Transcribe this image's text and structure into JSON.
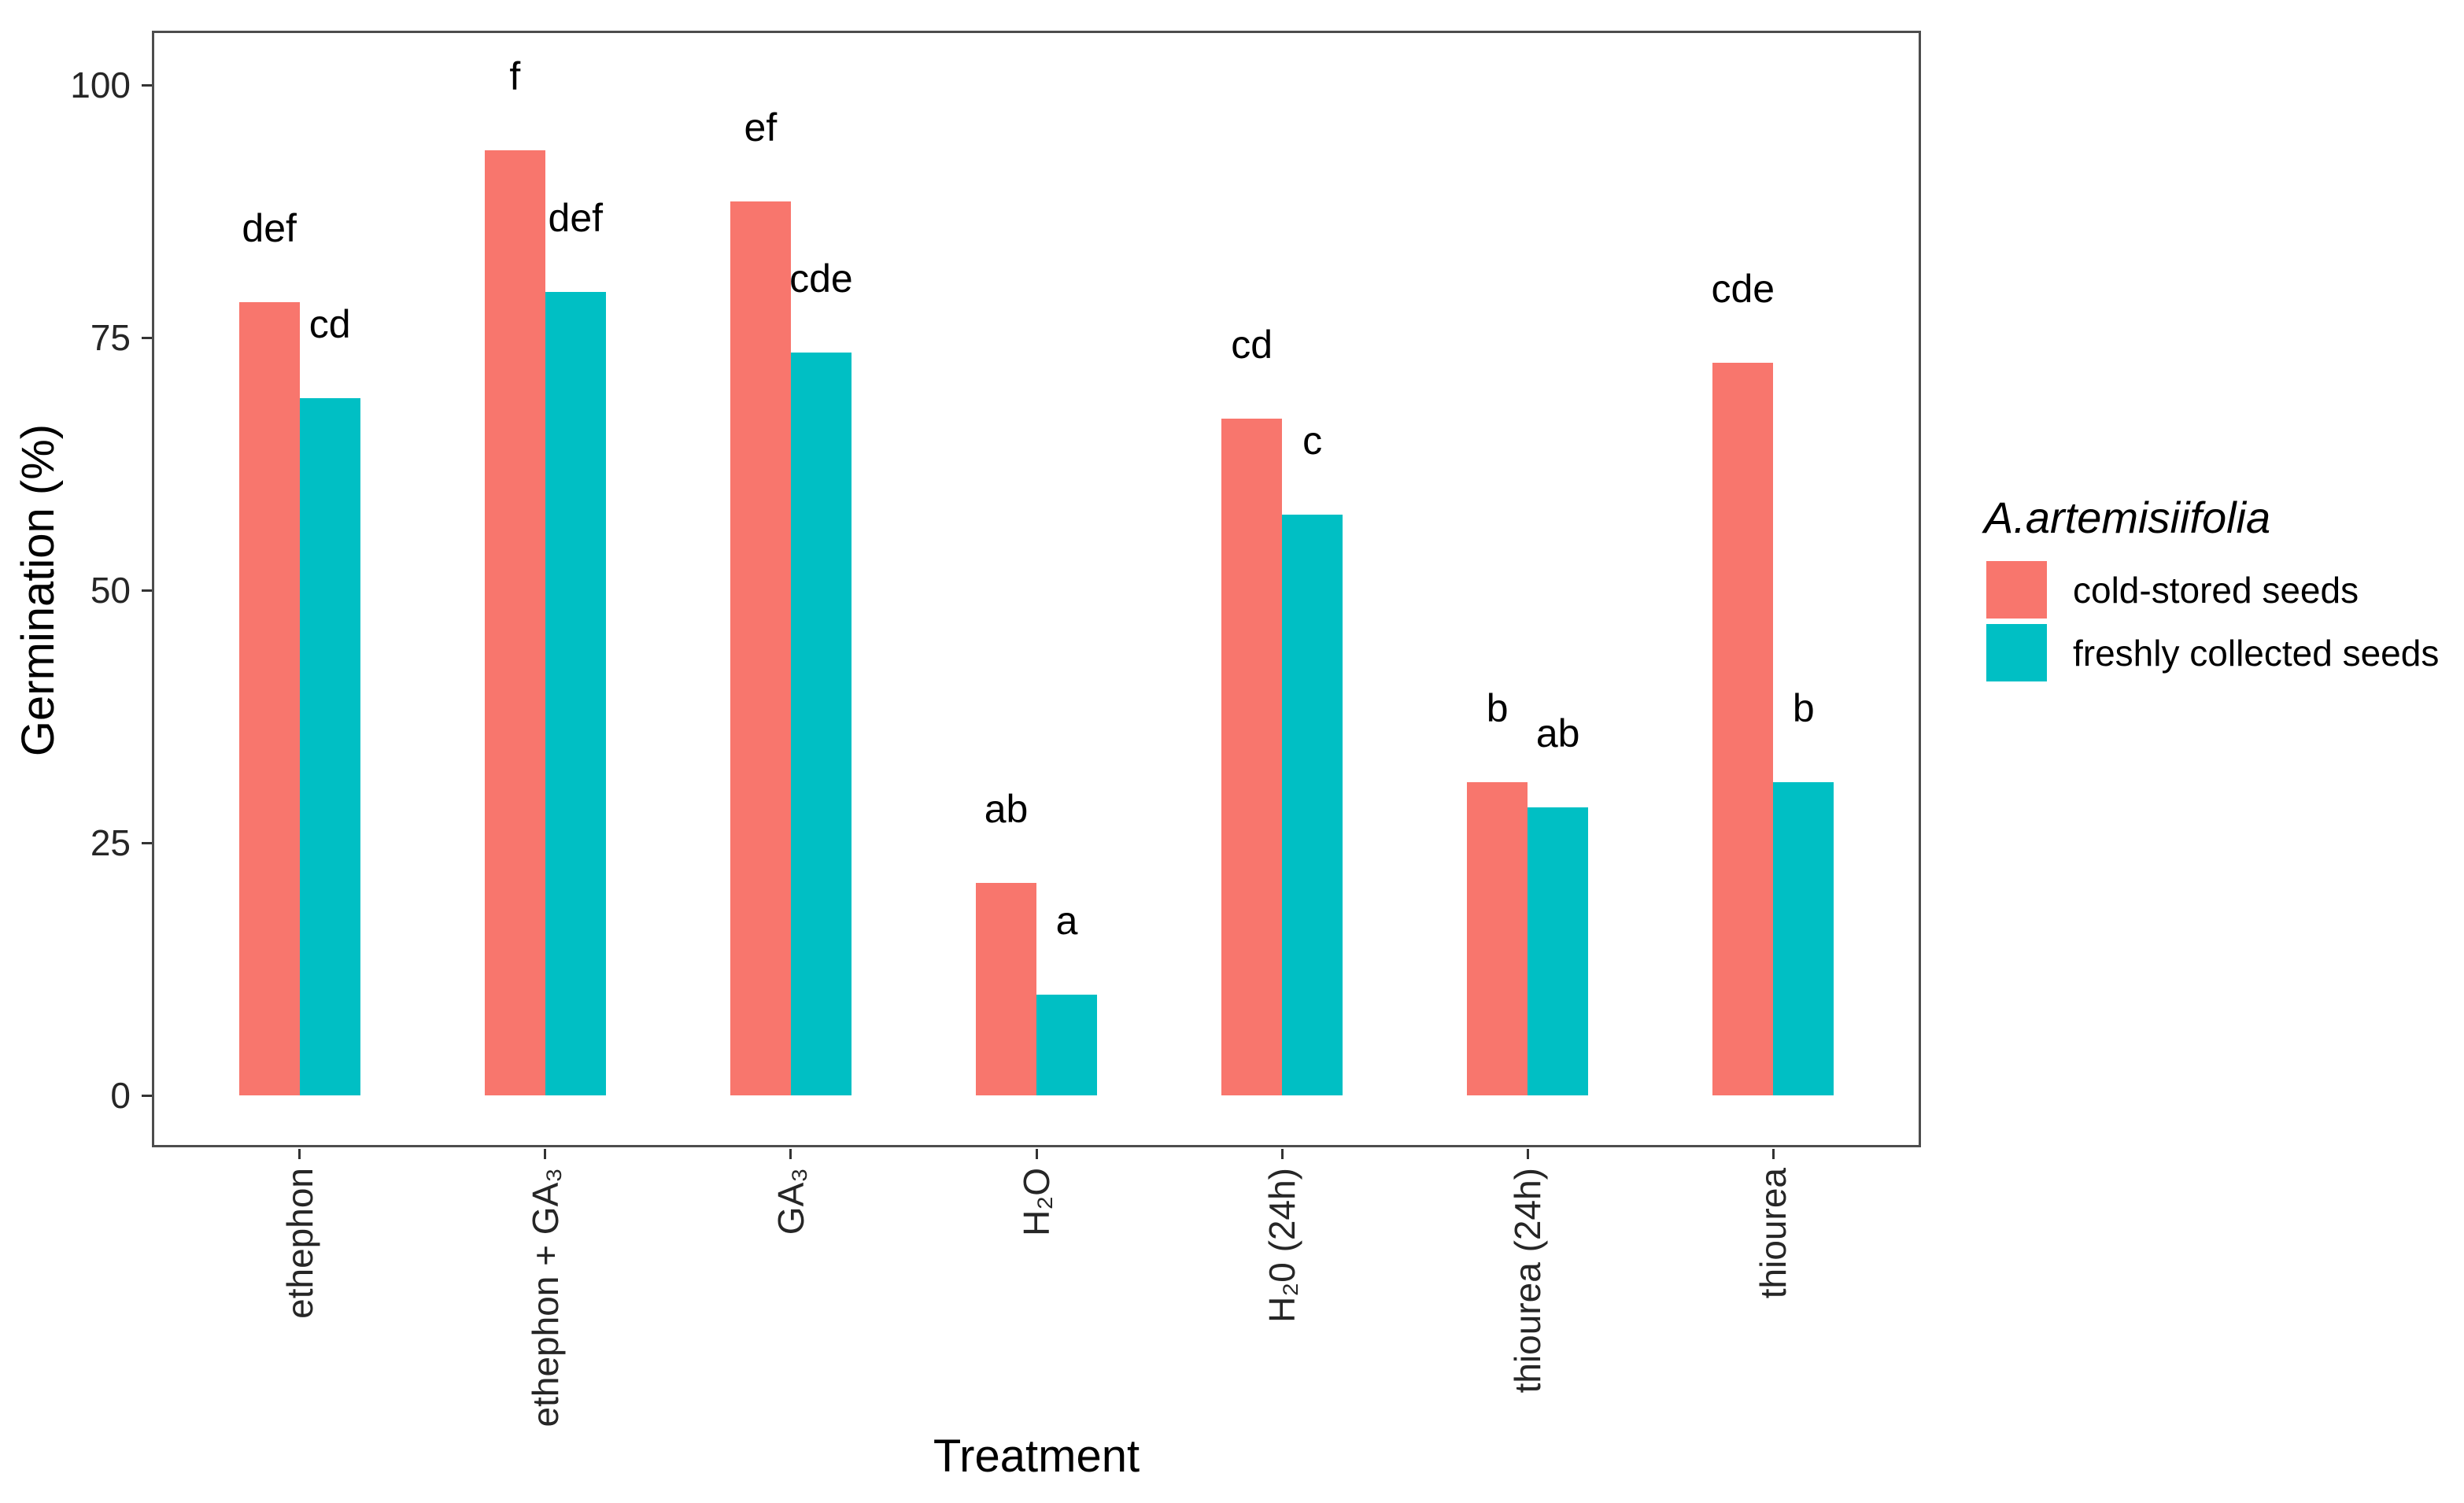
{
  "chart_data": {
    "type": "bar",
    "title": "",
    "xlabel": "Treatment",
    "ylabel": "Germination (%)",
    "ylim": [
      0,
      100
    ],
    "yticks": [
      "0",
      "25",
      "50",
      "75",
      "100"
    ],
    "grid": false,
    "legend_title": "A.artemisiifolia",
    "legend_position": "right",
    "categories": [
      "ethephon",
      "ethephon + GA₃",
      "GA₃",
      "H₂O",
      "H₂0 (24h)",
      "thiourea (24h)",
      "thiourea"
    ],
    "series": [
      {
        "name": "cold-stored seeds",
        "color": "#F8766D",
        "values": [
          78.5,
          93.5,
          88.5,
          21,
          67,
          31,
          72.5
        ],
        "sig_letters": [
          "def",
          "f",
          "ef",
          "ab",
          "cd",
          "b",
          "cde"
        ]
      },
      {
        "name": "freshly collected seeds",
        "color": "#00BFC4",
        "values": [
          69,
          79.5,
          73.5,
          10,
          57.5,
          28.5,
          31
        ],
        "sig_letters": [
          "cd",
          "def",
          "cde",
          "a",
          "c",
          "ab",
          "b"
        ]
      }
    ]
  }
}
